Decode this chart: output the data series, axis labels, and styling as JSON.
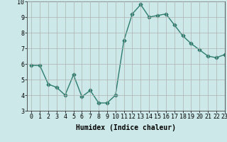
{
  "x": [
    0,
    1,
    2,
    3,
    4,
    5,
    6,
    7,
    8,
    9,
    10,
    11,
    12,
    13,
    14,
    15,
    16,
    17,
    18,
    19,
    20,
    21,
    22,
    23
  ],
  "y": [
    5.9,
    5.9,
    4.7,
    4.5,
    4.0,
    5.3,
    3.9,
    4.3,
    3.5,
    3.5,
    4.0,
    7.5,
    9.2,
    9.8,
    9.0,
    9.1,
    9.2,
    8.5,
    7.8,
    7.3,
    6.9,
    6.5,
    6.4,
    6.6
  ],
  "xlabel": "Humidex (Indice chaleur)",
  "ylim": [
    3,
    10
  ],
  "xlim": [
    -0.5,
    23
  ],
  "yticks": [
    3,
    4,
    5,
    6,
    7,
    8,
    9,
    10
  ],
  "xticks": [
    0,
    1,
    2,
    3,
    4,
    5,
    6,
    7,
    8,
    9,
    10,
    11,
    12,
    13,
    14,
    15,
    16,
    17,
    18,
    19,
    20,
    21,
    22,
    23
  ],
  "line_color": "#2e7d6e",
  "marker": "D",
  "marker_size": 2.5,
  "bg_color": "#cce8e8",
  "grid_color": "#b0b0b0",
  "line_width": 1.0,
  "xlabel_fontsize": 7,
  "tick_fontsize": 6
}
